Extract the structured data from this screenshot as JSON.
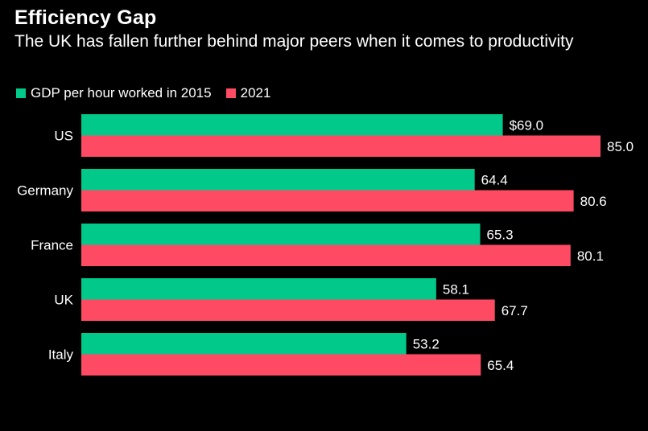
{
  "header": {
    "title": "Efficiency Gap",
    "subtitle": "The UK has fallen further behind major peers when it comes to productivity"
  },
  "colors": {
    "series_2015": "#00c98a",
    "series_2021": "#ff4a64",
    "background": "#000000",
    "text": "#ffffff"
  },
  "chart_data": {
    "type": "bar",
    "orientation": "horizontal",
    "title": "Efficiency Gap",
    "subtitle": "The UK has fallen further behind major peers when it comes to productivity",
    "categories": [
      "US",
      "Germany",
      "France",
      "UK",
      "Italy"
    ],
    "series": [
      {
        "name": "GDP per hour worked in 2015",
        "values": [
          69.0,
          64.4,
          65.3,
          58.1,
          53.2
        ],
        "labels": [
          "$69.0",
          "64.4",
          "65.3",
          "58.1",
          "53.2"
        ]
      },
      {
        "name": "2021",
        "values": [
          85.0,
          80.6,
          80.1,
          67.7,
          65.4
        ],
        "labels": [
          "85.0",
          "80.6",
          "80.1",
          "67.7",
          "65.4"
        ]
      }
    ],
    "xlim": [
      0,
      85
    ],
    "xlabel": "",
    "ylabel": "",
    "grid": false,
    "legend_position": "top-left"
  }
}
